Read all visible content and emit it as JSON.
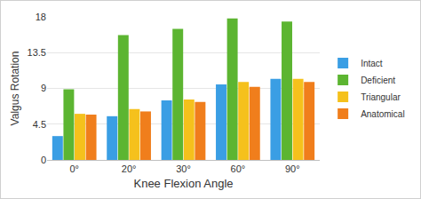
{
  "chart_data": {
    "type": "bar",
    "x_label": "Knee Flexion Angle",
    "y_label": "Valgus Rotation",
    "categories": [
      "0°",
      "20°",
      "30°",
      "60°",
      "90°"
    ],
    "series": [
      {
        "name": "Intact",
        "color": "#3a9ee4",
        "values": [
          3.0,
          5.5,
          7.5,
          9.5,
          10.2
        ]
      },
      {
        "name": "Deficient",
        "color": "#5cb531",
        "values": [
          8.9,
          15.7,
          16.5,
          17.8,
          17.4
        ]
      },
      {
        "name": "Triangular",
        "color": "#f5c11c",
        "values": [
          5.8,
          6.4,
          7.6,
          9.8,
          10.2
        ]
      },
      {
        "name": "Anatomical",
        "color": "#f07e1c",
        "values": [
          5.7,
          6.1,
          7.3,
          9.2,
          9.8
        ]
      }
    ],
    "ylim": [
      0,
      18
    ],
    "yticks": [
      0,
      4.5,
      9,
      13.5,
      18
    ],
    "grid": true,
    "legend": "right"
  }
}
